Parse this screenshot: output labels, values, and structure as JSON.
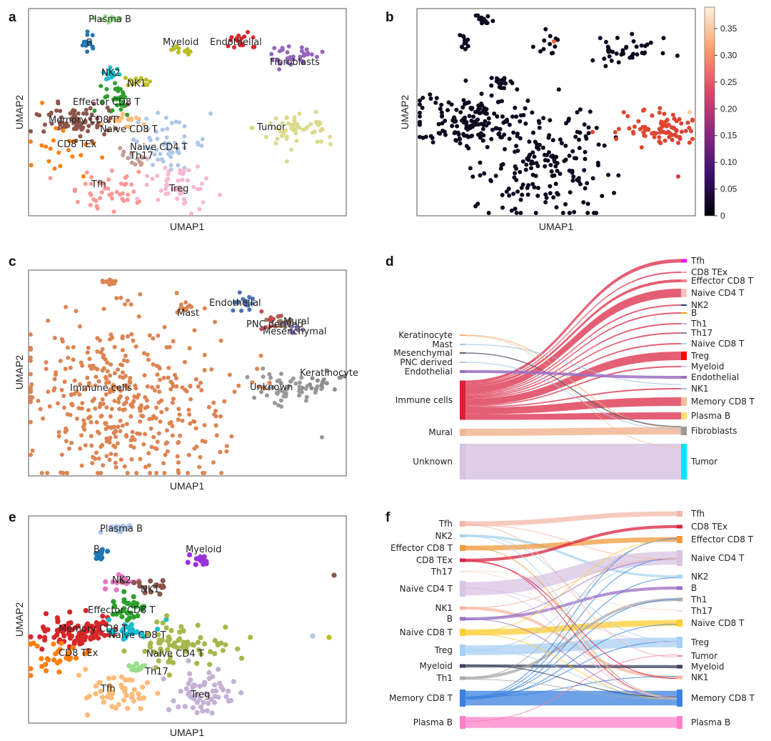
{
  "figure": {
    "panels": {
      "a": {
        "letter": "a",
        "xlabel": "UMAP1",
        "ylabel": "UMAP2",
        "clusters": [
          {
            "label": "Plasma B",
            "color": "#98df8a"
          },
          {
            "label": "B",
            "color": "#1f77b4"
          },
          {
            "label": "Myeloid",
            "color": "#bcbd22"
          },
          {
            "label": "Endothelial",
            "color": "#d62728"
          },
          {
            "label": "Fibroblasts",
            "color": "#9467bd"
          },
          {
            "label": "NK2",
            "color": "#17becf"
          },
          {
            "label": "NK1",
            "color": "#bcbd22"
          },
          {
            "label": "Effector CD8 T",
            "color": "#2ca02c"
          },
          {
            "label": "Memory CD8 T",
            "color": "#8c564b"
          },
          {
            "label": "Naive CD8 T",
            "color": "#ffbb78"
          },
          {
            "label": "CD8 TEx",
            "color": "#ff7f0e"
          },
          {
            "label": "Naive CD4 T",
            "color": "#aec7e8"
          },
          {
            "label": "Th17",
            "color": "#c49c94"
          },
          {
            "label": "Tumor",
            "color": "#dbdb8d"
          },
          {
            "label": "Tfh",
            "color": "#ff9896"
          },
          {
            "label": "Treg",
            "color": "#f7b6d2"
          }
        ]
      },
      "b": {
        "letter": "b",
        "xlabel": "UMAP1",
        "ylabel": "UMAP2",
        "colorbar": {
          "ticks": [
            "0",
            "0.05",
            "0.10",
            "0.15",
            "0.20",
            "0.25",
            "0.30",
            "0.35"
          ],
          "max": 0.39
        }
      },
      "c": {
        "letter": "c",
        "xlabel": "UMAP1",
        "ylabel": "UMAP2",
        "clusters": [
          {
            "label": "Mast",
            "color": "#dd8452"
          },
          {
            "label": "Endothelial",
            "color": "#4c72b0"
          },
          {
            "label": "Mural",
            "color": "#937860"
          },
          {
            "label": "PNC derived",
            "color": "#c44e52"
          },
          {
            "label": "Mesenchymal",
            "color": "#8172b3"
          },
          {
            "label": "Keratinocyte",
            "color": "#8c8c8c"
          },
          {
            "label": "Unknown",
            "color": "#999999"
          },
          {
            "label": "Immune cells",
            "color": "#dd8452"
          }
        ]
      },
      "d": {
        "letter": "d",
        "left": [
          {
            "label": "Keratinocyte",
            "color": "#f4b27a"
          },
          {
            "label": "Mast",
            "color": "#9ec6e8"
          },
          {
            "label": "Mesenchymal",
            "color": "#555a6e"
          },
          {
            "label": "PNC derived",
            "color": "#a7c7e7"
          },
          {
            "label": "Endothelial",
            "color": "#9b6fc4"
          },
          {
            "label": "Immune cells",
            "color": "#d9213e"
          },
          {
            "label": "Mural",
            "color": "#f2b694"
          },
          {
            "label": "Unknown",
            "color": "#d7c4e3"
          }
        ],
        "right": [
          {
            "label": "Tfh",
            "color": "#ff00ff"
          },
          {
            "label": "CD8 TEx",
            "color": "#e8a0a0"
          },
          {
            "label": "Effector CD8 T",
            "color": "#f08080"
          },
          {
            "label": "Naive CD4 T",
            "color": "#f7c6c6"
          },
          {
            "label": "NK2",
            "color": "#1f3d7a"
          },
          {
            "label": "B",
            "color": "#f0a000"
          },
          {
            "label": "Th1",
            "color": "#c8b4e0"
          },
          {
            "label": "Th17",
            "color": "#888888"
          },
          {
            "label": "Naive CD8 T",
            "color": "#a0d8f0"
          },
          {
            "label": "Treg",
            "color": "#ff0000"
          },
          {
            "label": "Myeloid",
            "color": "#d8c0f0"
          },
          {
            "label": "Endothelial",
            "color": "#9b6fc4"
          },
          {
            "label": "NK1",
            "color": "#a0c0e0"
          },
          {
            "label": "Memory CD8 T",
            "color": "#f0c0a0"
          },
          {
            "label": "Plasma B",
            "color": "#ffe070"
          },
          {
            "label": "Fibroblasts",
            "color": "#9a9a9a"
          },
          {
            "label": "Tumor",
            "color": "#00e5ff"
          }
        ]
      },
      "e": {
        "letter": "e",
        "xlabel": "UMAP1",
        "ylabel": "UMAP2",
        "clusters": [
          {
            "label": "Plasma B",
            "color": "#aec7e8"
          },
          {
            "label": "B",
            "color": "#1f77b4"
          },
          {
            "label": "Myeloid",
            "color": "#9b30e0"
          },
          {
            "label": "NK2",
            "color": "#e377c2"
          },
          {
            "label": "NK1",
            "color": "#8c564b"
          },
          {
            "label": "Effector CD8 T",
            "color": "#2ca02c"
          },
          {
            "label": "Memory CD8 T",
            "color": "#d62728"
          },
          {
            "label": "Naive CD8 T",
            "color": "#17becf"
          },
          {
            "label": "CD8 TEx",
            "color": "#ff7f0e"
          },
          {
            "label": "Naive CD4 T",
            "color": "#a5b84a"
          },
          {
            "label": "Th17",
            "color": "#98df8a"
          },
          {
            "label": "Tfh",
            "color": "#ffbb78"
          },
          {
            "label": "Treg",
            "color": "#c5b0d5"
          }
        ]
      },
      "f": {
        "letter": "f",
        "left": [
          {
            "label": "Tfh",
            "color": "#f4b8a8"
          },
          {
            "label": "NK2",
            "color": "#a7d4ef"
          },
          {
            "label": "Effector CD8 T",
            "color": "#f29a3c"
          },
          {
            "label": "CD8 TEx",
            "color": "#d9213e"
          },
          {
            "label": "Th17",
            "color": "#f6dccf"
          },
          {
            "label": "Naive CD4 T",
            "color": "#d8c4e3"
          },
          {
            "label": "NK1",
            "color": "#f4b8a0"
          },
          {
            "label": "B",
            "color": "#9b6fc4"
          },
          {
            "label": "Naive CD8 T",
            "color": "#ffcc33"
          },
          {
            "label": "Treg",
            "color": "#a8d0f4"
          },
          {
            "label": "Myeloid",
            "color": "#3a3f5c"
          },
          {
            "label": "Th1",
            "color": "#aaaaaa"
          },
          {
            "label": "Memory CD8 T",
            "color": "#3b82e0"
          },
          {
            "label": "Plasma B",
            "color": "#ff80c8"
          }
        ],
        "right": [
          {
            "label": "Tfh",
            "color": "#f4b8a8"
          },
          {
            "label": "CD8 TEx",
            "color": "#d9213e"
          },
          {
            "label": "Effector CD8 T",
            "color": "#f29a3c"
          },
          {
            "label": "Naive CD4 T",
            "color": "#d8c4e3"
          },
          {
            "label": "NK2",
            "color": "#a7d4ef"
          },
          {
            "label": "B",
            "color": "#9b6fc4"
          },
          {
            "label": "Th1",
            "color": "#aaaaaa"
          },
          {
            "label": "Th17",
            "color": "#f6dccf"
          },
          {
            "label": "Naive CD8 T",
            "color": "#ffcc33"
          },
          {
            "label": "Treg",
            "color": "#a8d0f4"
          },
          {
            "label": "Tumor",
            "color": "#f080a0"
          },
          {
            "label": "Myeloid",
            "color": "#3a3f5c"
          },
          {
            "label": "NK1",
            "color": "#f4b8a0"
          },
          {
            "label": "Memory CD8 T",
            "color": "#3b82e0"
          },
          {
            "label": "Plasma B",
            "color": "#ff80c8"
          }
        ]
      }
    }
  }
}
